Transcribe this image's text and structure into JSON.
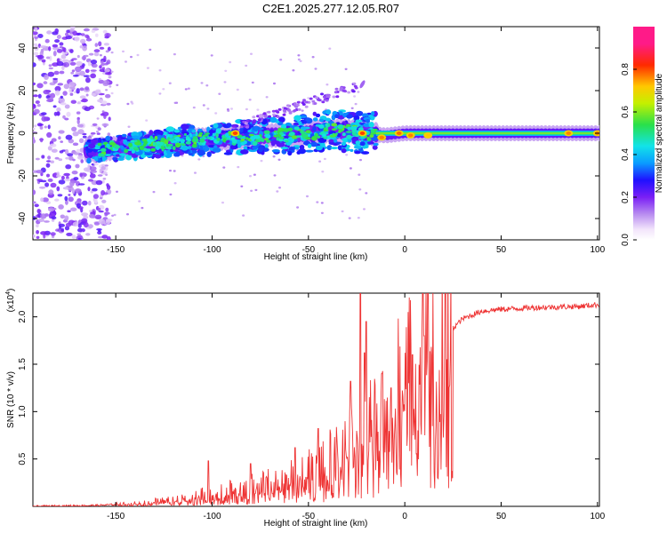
{
  "title": "C2E1.2025.277.12.05.R07",
  "colors": {
    "trace": "#ee3333",
    "axis": "#000000",
    "background": "#ffffff"
  },
  "chart_data": [
    {
      "type": "heatmap",
      "name": "spectrogram",
      "xlabel": "Height of straight line (km)",
      "ylabel": "Frequency (Hz)",
      "xlim": [
        -193,
        101
      ],
      "ylim": [
        -50,
        50
      ],
      "x_ticks": [
        -150,
        -100,
        -50,
        0,
        50,
        100
      ],
      "y_ticks": [
        -40,
        -20,
        0,
        20,
        40
      ],
      "colorbar": {
        "label": "Normalized spectral amplitude",
        "range": [
          0.0,
          1.0
        ],
        "ticks": [
          0.0,
          0.2,
          0.4,
          0.6,
          0.8
        ],
        "tick_labels": [
          "0.0",
          "0.2",
          "0.4",
          "0.6",
          "0.8"
        ]
      },
      "ridge": [
        {
          "x": -160,
          "y": -8
        },
        {
          "x": -150,
          "y": -7
        },
        {
          "x": -140,
          "y": -6
        },
        {
          "x": -130,
          "y": -5
        },
        {
          "x": -120,
          "y": -4
        },
        {
          "x": -110,
          "y": -3
        },
        {
          "x": -100,
          "y": -3
        },
        {
          "x": -90,
          "y": -2
        },
        {
          "x": -80,
          "y": -2
        },
        {
          "x": -70,
          "y": -1
        },
        {
          "x": -60,
          "y": -1
        },
        {
          "x": -50,
          "y": 0
        },
        {
          "x": -40,
          "y": 1
        },
        {
          "x": -30,
          "y": 1
        },
        {
          "x": -20,
          "y": 0
        },
        {
          "x": -10,
          "y": -1
        },
        {
          "x": 0,
          "y": 0
        },
        {
          "x": 10,
          "y": 0
        },
        {
          "x": 25,
          "y": 0
        },
        {
          "x": 50,
          "y": 0
        },
        {
          "x": 75,
          "y": 0
        },
        {
          "x": 100,
          "y": 0
        }
      ],
      "peaks": [
        {
          "x": -88,
          "y": 0,
          "amp": 0.95
        },
        {
          "x": -22,
          "y": 0,
          "amp": 0.95
        },
        {
          "x": -12,
          "y": -2,
          "amp": 0.9
        },
        {
          "x": -3,
          "y": 0,
          "amp": 0.92
        },
        {
          "x": 3,
          "y": -1,
          "amp": 0.9
        },
        {
          "x": 12,
          "y": -1,
          "amp": 0.85
        },
        {
          "x": 85,
          "y": 0,
          "amp": 0.9
        },
        {
          "x": 100,
          "y": 0,
          "amp": 0.9
        }
      ]
    },
    {
      "type": "line",
      "name": "snr",
      "xlabel": "Height of straight line (km)",
      "ylabel": "SNR (10 * v/v)",
      "y_scale_label": "(x10",
      "y_scale_exp": "4",
      "xlim": [
        -193,
        101
      ],
      "ylim": [
        0,
        2.25
      ],
      "x_ticks": [
        -150,
        -100,
        -50,
        0,
        50,
        100
      ],
      "y_ticks": [
        0.5,
        1.0,
        1.5,
        2.0
      ],
      "y_tick_labels": [
        "0.5",
        "1.0",
        "1.5",
        "2.0"
      ],
      "trend": [
        {
          "x": -193,
          "y": 0.0
        },
        {
          "x": -160,
          "y": 0.01
        },
        {
          "x": -140,
          "y": 0.03
        },
        {
          "x": -120,
          "y": 0.06
        },
        {
          "x": -100,
          "y": 0.12
        },
        {
          "x": -80,
          "y": 0.18
        },
        {
          "x": -60,
          "y": 0.25
        },
        {
          "x": -50,
          "y": 0.32
        },
        {
          "x": -40,
          "y": 0.42
        },
        {
          "x": -30,
          "y": 0.55
        },
        {
          "x": -20,
          "y": 0.7
        },
        {
          "x": -10,
          "y": 0.9
        },
        {
          "x": -5,
          "y": 1.05
        },
        {
          "x": 0,
          "y": 1.3
        },
        {
          "x": 5,
          "y": 1.5
        },
        {
          "x": 10,
          "y": 1.62
        },
        {
          "x": 20,
          "y": 1.78
        },
        {
          "x": 30,
          "y": 1.98
        },
        {
          "x": 40,
          "y": 2.06
        },
        {
          "x": 50,
          "y": 2.08
        },
        {
          "x": 70,
          "y": 2.1
        },
        {
          "x": 90,
          "y": 2.11
        },
        {
          "x": 101,
          "y": 2.13
        }
      ],
      "spikes": [
        {
          "x": -102,
          "y": 0.48
        },
        {
          "x": -80,
          "y": 0.45
        },
        {
          "x": -57,
          "y": 0.62
        },
        {
          "x": -45,
          "y": 0.82
        },
        {
          "x": -28,
          "y": 1.32
        },
        {
          "x": -23,
          "y": 2.25
        },
        {
          "x": -21,
          "y": 1.62
        },
        {
          "x": -20,
          "y": 1.95
        },
        {
          "x": -12,
          "y": 1.4
        },
        {
          "x": -7,
          "y": 1.25
        },
        {
          "x": 4,
          "y": 1.6
        },
        {
          "x": 10,
          "y": 1.8
        }
      ]
    }
  ]
}
